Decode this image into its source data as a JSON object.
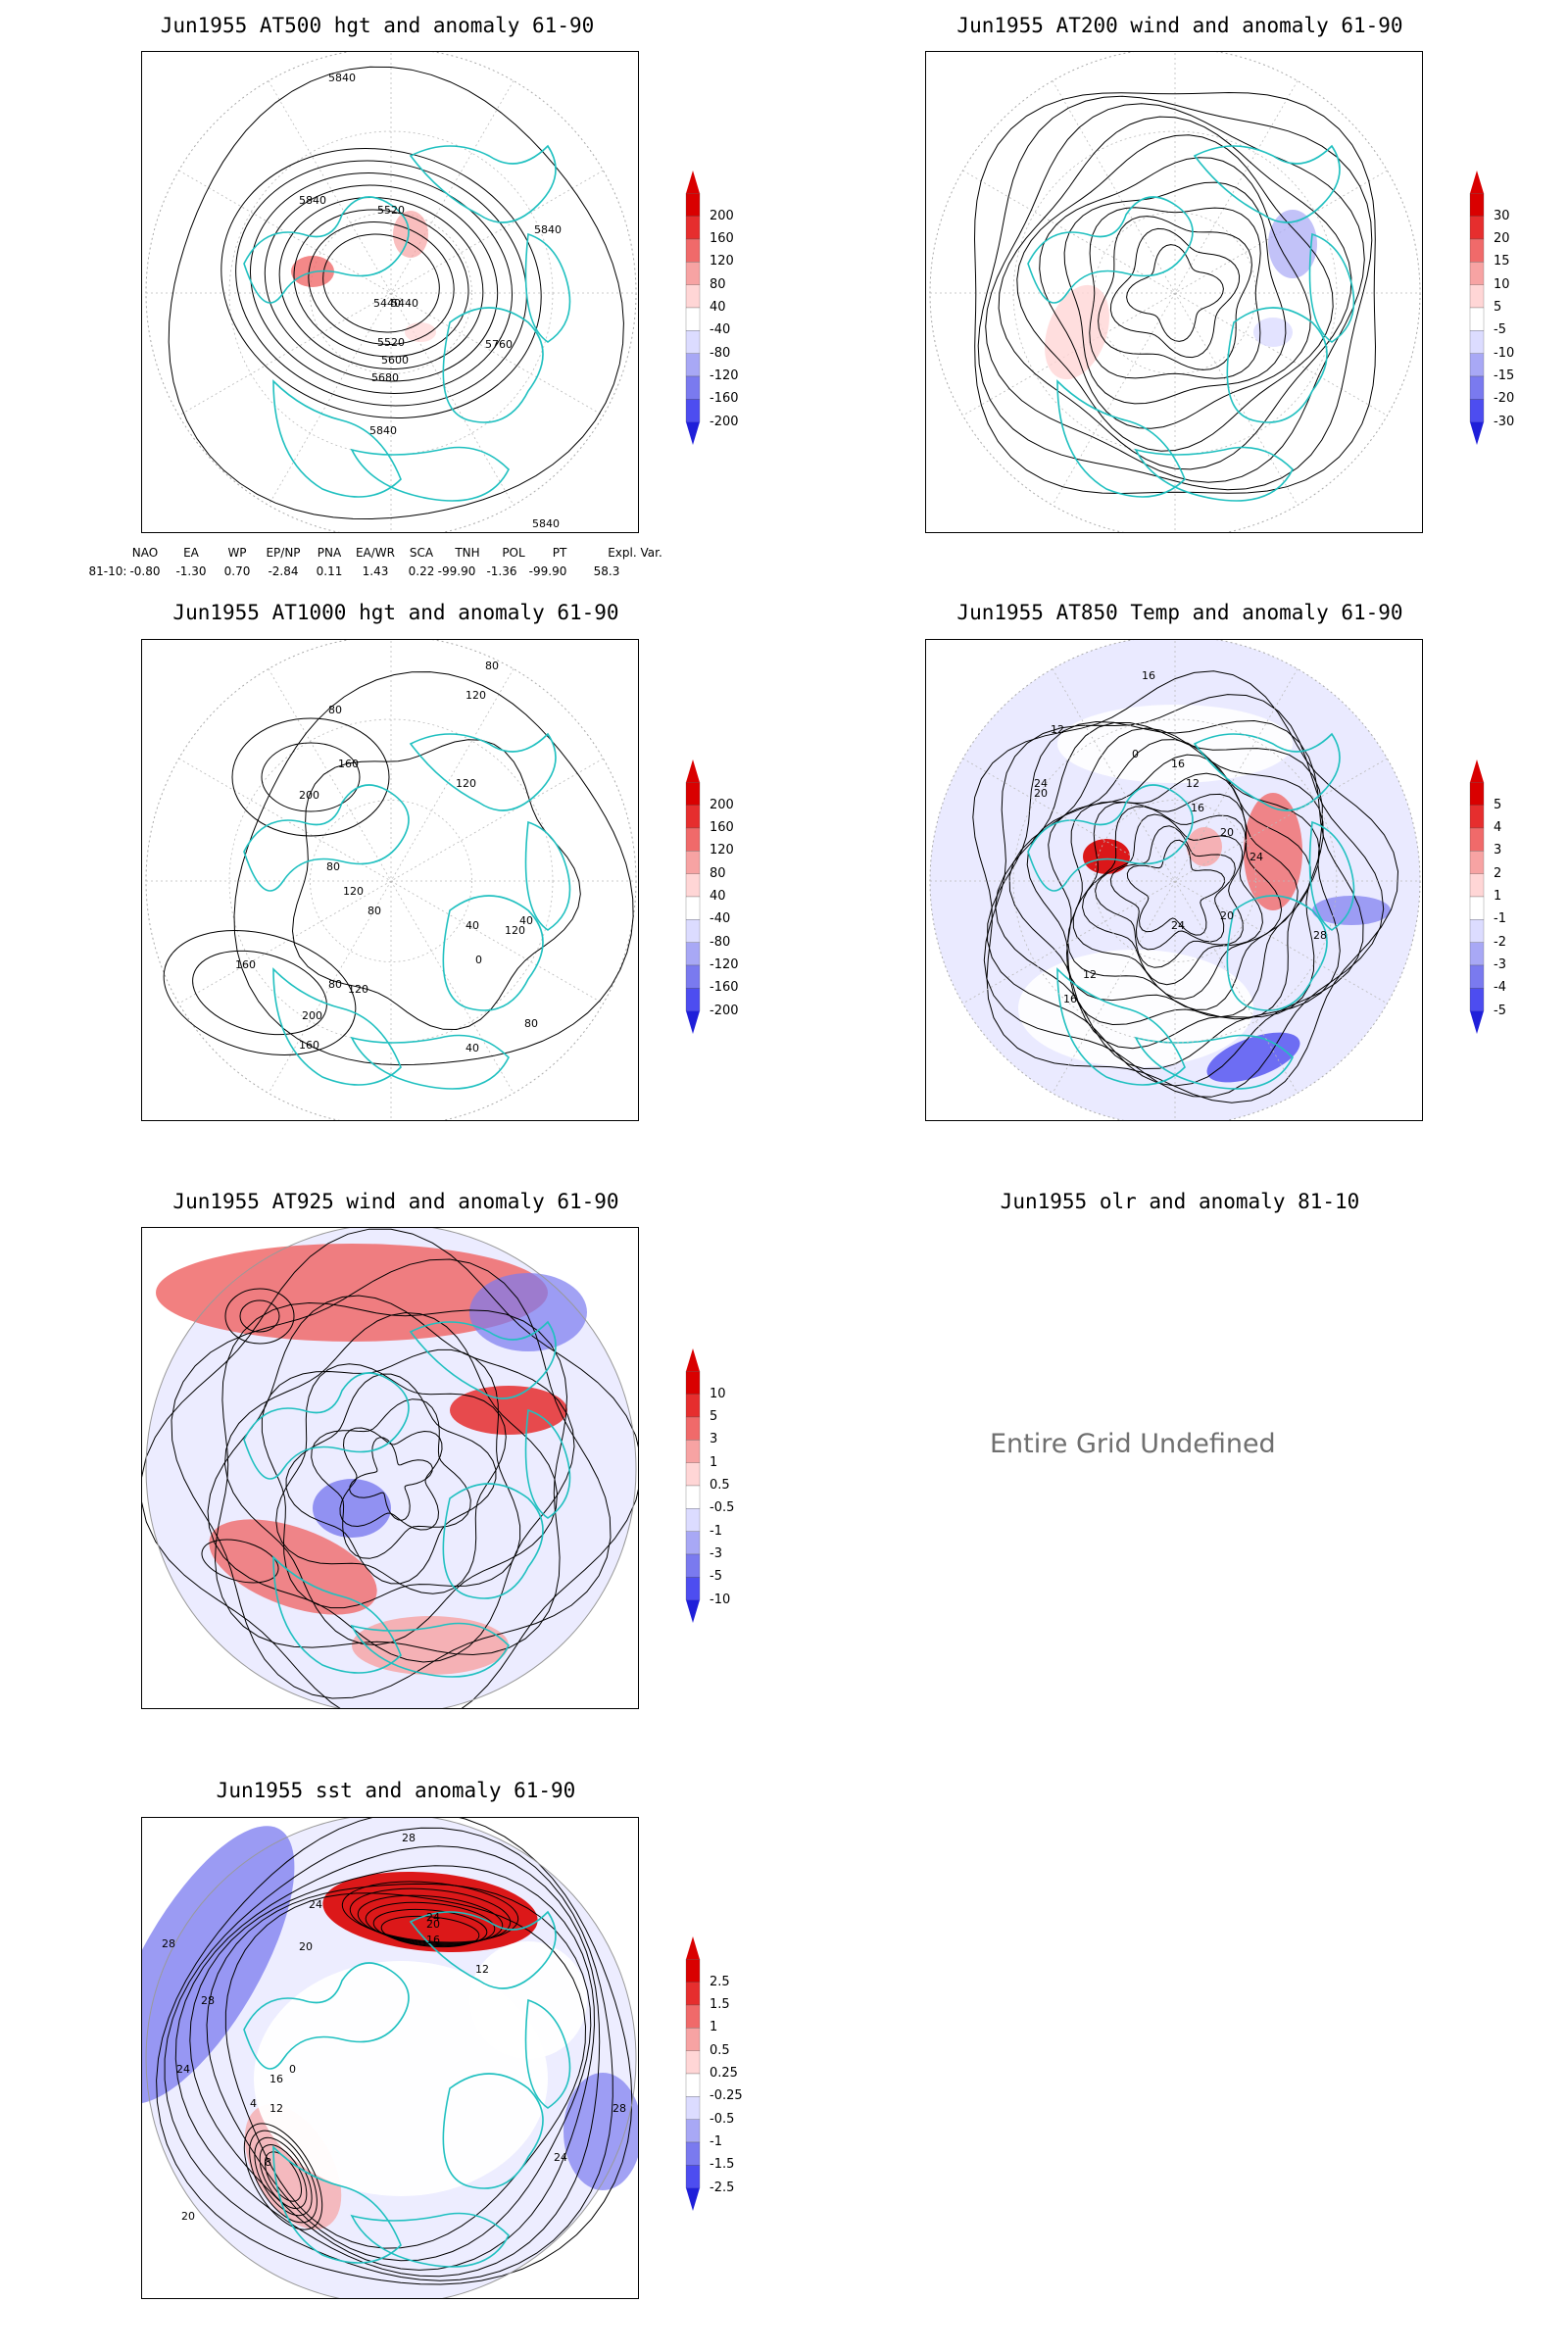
{
  "panels": [
    {
      "title": "Jun1955 AT500 hgt and anomaly 61-90",
      "colorbar": [
        "200",
        "160",
        "120",
        "80",
        "40",
        "-40",
        "-80",
        "-120",
        "-160",
        "-200"
      ],
      "contour_labels": [
        "5840",
        "5840",
        "5840",
        "5520",
        "5440",
        "5440",
        "5520",
        "5600",
        "5680",
        "5760",
        "5840",
        "5840"
      ]
    },
    {
      "title": "Jun1955 AT200 wind and anomaly 61-90",
      "colorbar": [
        "30",
        "20",
        "15",
        "10",
        "5",
        "-5",
        "-10",
        "-15",
        "-20",
        "-30"
      ],
      "contour_labels": []
    },
    {
      "title": "Jun1955 AT1000 hgt and anomaly 61-90",
      "colorbar": [
        "200",
        "160",
        "120",
        "80",
        "40",
        "-40",
        "-80",
        "-120",
        "-160",
        "-200"
      ],
      "contour_labels": [
        "80",
        "120",
        "160",
        "80",
        "200",
        "120",
        "80",
        "120",
        "160",
        "200",
        "160",
        "80",
        "120",
        "40",
        "80",
        "120",
        "40",
        "0",
        "80",
        "40"
      ]
    },
    {
      "title": "Jun1955 AT850 Temp and anomaly 61-90",
      "colorbar": [
        "5",
        "4",
        "3",
        "2",
        "1",
        "-1",
        "-2",
        "-3",
        "-4",
        "-5"
      ],
      "contour_labels": [
        "16",
        "12",
        "24",
        "20",
        "0",
        "16",
        "12",
        "20",
        "24",
        "28",
        "16",
        "12",
        "16",
        "24",
        "20"
      ]
    },
    {
      "title": "Jun1955 AT925 wind and anomaly 61-90",
      "colorbar": [
        "10",
        "5",
        "3",
        "1",
        "0.5",
        "-0.5",
        "-1",
        "-3",
        "-5",
        "-10"
      ],
      "contour_labels": []
    },
    {
      "title": "Jun1955 olr and anomaly 81-10",
      "undefined_text": "Entire Grid Undefined"
    },
    {
      "title": "Jun1955 sst and anomaly 61-90",
      "colorbar": [
        "2.5",
        "1.5",
        "1",
        "0.5",
        "0.25",
        "-0.25",
        "-0.5",
        "-1",
        "-1.5",
        "-2.5"
      ],
      "contour_labels": [
        "28",
        "24",
        "20",
        "28",
        "24",
        "20",
        "16",
        "12",
        "28",
        "24",
        "16",
        "12",
        "8",
        "4",
        "0",
        "28",
        "24",
        "20"
      ]
    }
  ],
  "teleconnections": {
    "headers": [
      "NAO",
      "EA",
      "WP",
      "EP/NP",
      "PNA",
      "EA/WR",
      "SCA",
      "TNH",
      "POL",
      "PT",
      "Expl. Var."
    ],
    "row_label": "81-10:",
    "values": [
      "-0.80",
      "-1.30",
      "0.70",
      "-2.84",
      "0.11",
      "1.43",
      "0.22",
      "-99.90",
      "-1.36",
      "-99.90",
      "58.3"
    ]
  },
  "colors": {
    "positive_ramp": [
      "#ffffff",
      "#ffd6d6",
      "#f7a3a3",
      "#f06a6a",
      "#e62e2e",
      "#d90000"
    ],
    "negative_ramp": [
      "#ffffff",
      "#dcdcff",
      "#a8a8f5",
      "#7a7aef",
      "#4d4df0",
      "#1f1fd9"
    ],
    "coastline": "#20c0c0",
    "contour": "#000000"
  }
}
